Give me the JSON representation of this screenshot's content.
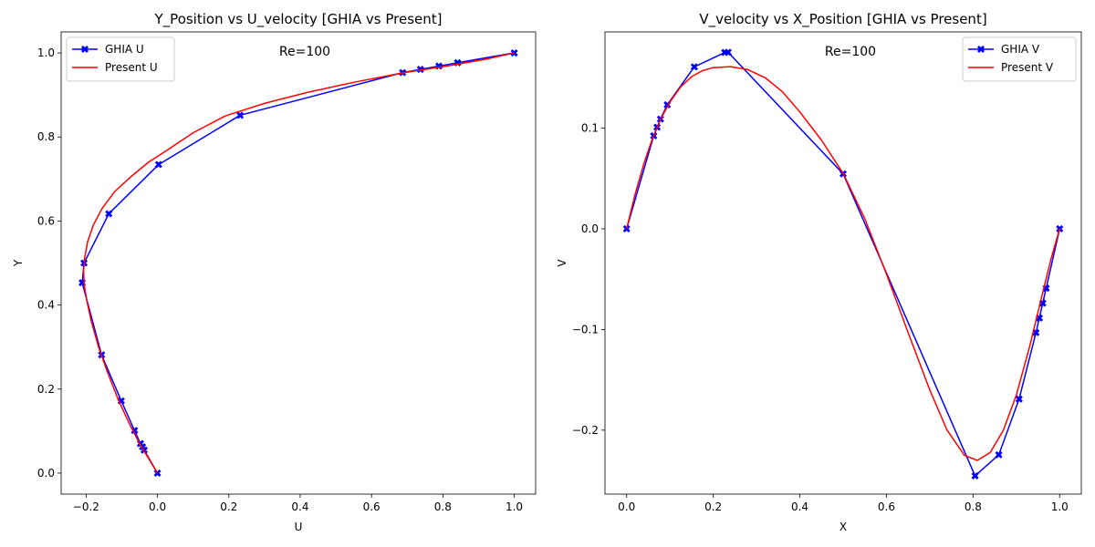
{
  "chart_data": [
    {
      "type": "line",
      "title": "Y_Position vs U_velocity [GHIA vs Present]",
      "xlabel": "U",
      "ylabel": "Y",
      "xlim": [
        -0.27,
        1.06
      ],
      "ylim": [
        -0.05,
        1.05
      ],
      "xticks": [
        -0.2,
        0.0,
        0.2,
        0.4,
        0.6,
        0.8,
        1.0
      ],
      "yticks": [
        0.0,
        0.2,
        0.4,
        0.6,
        0.8,
        1.0
      ],
      "tick_format": 1,
      "grid": false,
      "legend_position": "top-left",
      "annotation": "Re=100",
      "series": [
        {
          "name": "GHIA U",
          "color": "#0000ff",
          "marker": "x-filled",
          "x": [
            0.0,
            -0.03717,
            -0.04192,
            -0.04775,
            -0.06434,
            -0.1015,
            -0.15662,
            -0.2109,
            -0.20581,
            -0.13641,
            0.00332,
            0.23151,
            0.68717,
            0.73722,
            0.78871,
            0.84123,
            1.0
          ],
          "y": [
            0.0,
            0.0547,
            0.0625,
            0.0703,
            0.1016,
            0.1719,
            0.2813,
            0.4531,
            0.5,
            0.6172,
            0.7344,
            0.8516,
            0.9531,
            0.9609,
            0.9688,
            0.9766,
            1.0
          ]
        },
        {
          "name": "Present U",
          "color": "#ff0000",
          "marker": "none",
          "x": [
            0.0,
            -0.025,
            -0.05,
            -0.08,
            -0.11,
            -0.14,
            -0.165,
            -0.185,
            -0.198,
            -0.2055,
            -0.207,
            -0.2045,
            -0.196,
            -0.18,
            -0.155,
            -0.12,
            -0.075,
            -0.025,
            0.03,
            0.1,
            0.19,
            0.3,
            0.42,
            0.55,
            0.69,
            0.82,
            0.92,
            1.0
          ],
          "y": [
            0.0,
            0.035,
            0.07,
            0.12,
            0.175,
            0.24,
            0.3,
            0.36,
            0.41,
            0.45,
            0.48,
            0.51,
            0.55,
            0.59,
            0.63,
            0.67,
            0.705,
            0.74,
            0.77,
            0.81,
            0.85,
            0.88,
            0.906,
            0.93,
            0.953,
            0.97,
            0.985,
            1.0
          ]
        }
      ]
    },
    {
      "type": "line",
      "title": "V_velocity vs X_Position [GHIA vs Present]",
      "xlabel": "X",
      "ylabel": "V",
      "xlim": [
        -0.05,
        1.05
      ],
      "ylim": [
        -0.2635,
        0.1955
      ],
      "xticks": [
        0.0,
        0.2,
        0.4,
        0.6,
        0.8,
        1.0
      ],
      "yticks": [
        -0.2,
        -0.1,
        0.0,
        0.1
      ],
      "tick_format": 1,
      "grid": false,
      "legend_position": "top-right",
      "annotation": "Re=100",
      "series": [
        {
          "name": "GHIA V",
          "color": "#0000ff",
          "marker": "x-filled",
          "x": [
            0.0,
            0.0625,
            0.0703,
            0.0781,
            0.0938,
            0.1563,
            0.2266,
            0.2344,
            0.5,
            0.8047,
            0.8594,
            0.9063,
            0.9453,
            0.9531,
            0.9609,
            0.9688,
            1.0
          ],
          "y": [
            0.0,
            0.09233,
            0.10091,
            0.1089,
            0.12317,
            0.16077,
            0.17507,
            0.17527,
            0.05454,
            -0.24533,
            -0.22445,
            -0.16914,
            -0.10313,
            -0.08864,
            -0.07391,
            -0.05906,
            0.0
          ]
        },
        {
          "name": "Present V",
          "color": "#ff0000",
          "marker": "none",
          "x": [
            0.0,
            0.02,
            0.04,
            0.06,
            0.08,
            0.1,
            0.125,
            0.15,
            0.175,
            0.2,
            0.24,
            0.28,
            0.32,
            0.36,
            0.4,
            0.45,
            0.5,
            0.55,
            0.6,
            0.65,
            0.7,
            0.74,
            0.78,
            0.81,
            0.84,
            0.87,
            0.9,
            0.93,
            0.96,
            0.98,
            1.0
          ],
          "y": [
            0.0,
            0.035,
            0.065,
            0.09,
            0.11,
            0.126,
            0.141,
            0.151,
            0.157,
            0.16,
            0.161,
            0.158,
            0.15,
            0.136,
            0.116,
            0.088,
            0.055,
            0.01,
            -0.045,
            -0.103,
            -0.16,
            -0.2,
            -0.225,
            -0.23,
            -0.222,
            -0.2,
            -0.165,
            -0.118,
            -0.065,
            -0.03,
            0.0
          ]
        }
      ]
    }
  ]
}
